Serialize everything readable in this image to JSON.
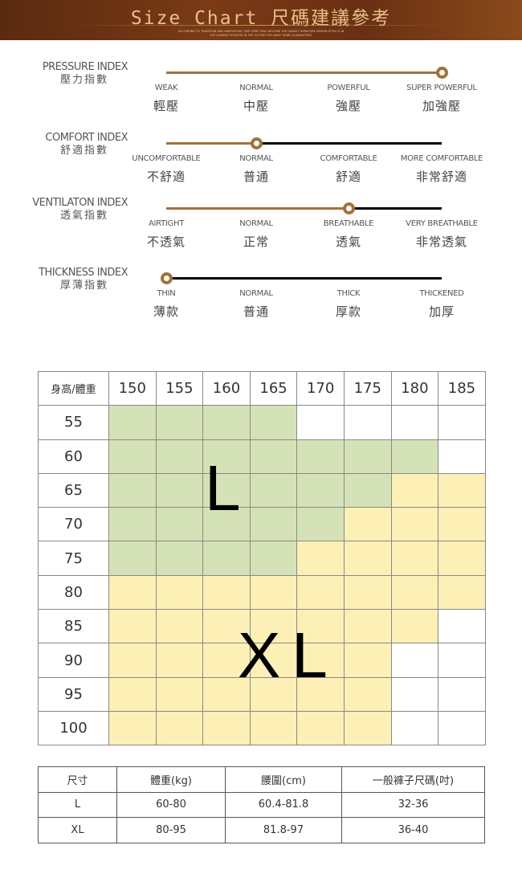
{
  "header": {
    "title": "Size Chart 尺碼建議參考",
    "subtitle_line1": "ACCORDING TO TRADITION AND INNOVATION, THIS SPIRIT WILL BECOME THE DANISH FURNITURE DESIGN STYLE IS IN",
    "subtitle_line2": "THE LEADING POSITION IN THE FUTURE FOR MANY YEARS GUARANTEED."
  },
  "indices": [
    {
      "name_en": "PRESSURE INDEX",
      "name_zh": "壓力指數",
      "level": 3,
      "levels": [
        {
          "en": "WEAK",
          "zh": "輕壓"
        },
        {
          "en": "NORMAL",
          "zh": "中壓"
        },
        {
          "en": "POWERFUL",
          "zh": "強壓"
        },
        {
          "en": "SUPER POWERFUL",
          "zh": "加強壓"
        }
      ]
    },
    {
      "name_en": "COMFORT INDEX",
      "name_zh": "舒適指數",
      "level": 1,
      "levels": [
        {
          "en": "UNCOMFORTABLE",
          "zh": "不舒適"
        },
        {
          "en": "NORMAL",
          "zh": "普通"
        },
        {
          "en": "COMFORTABLE",
          "zh": "舒適"
        },
        {
          "en": "MORE COMFORTABLE",
          "zh": "非常舒適"
        }
      ]
    },
    {
      "name_en": "VENTILATON INDEX",
      "name_zh": "透氣指數",
      "level": 2,
      "levels": [
        {
          "en": "AIRTIGHT",
          "zh": "不透氣"
        },
        {
          "en": "NORMAL",
          "zh": "正常"
        },
        {
          "en": "BREATHABLE",
          "zh": "透氣"
        },
        {
          "en": "VERY BREATHABLE",
          "zh": "非常透氣"
        }
      ]
    },
    {
      "name_en": "THICKNESS INDEX",
      "name_zh": "厚薄指數",
      "level": 0,
      "levels": [
        {
          "en": "THIN",
          "zh": "薄款"
        },
        {
          "en": "NORMAL",
          "zh": "普通"
        },
        {
          "en": "THICK",
          "zh": "厚款"
        },
        {
          "en": "THICKENED",
          "zh": "加厚"
        }
      ]
    }
  ],
  "colors": {
    "accent": "#a0723e",
    "L": "#d5e2b7",
    "XL": "#fdf0b6"
  },
  "size_grid": {
    "corner": "身高/體重",
    "heights": [
      "150",
      "155",
      "160",
      "165",
      "170",
      "175",
      "180",
      "185"
    ],
    "weights": [
      "55",
      "60",
      "65",
      "70",
      "75",
      "80",
      "85",
      "90",
      "95",
      "100"
    ],
    "cells": [
      "LLLL----",
      "LLLLLLL-",
      "LLLLLLXX",
      "LLLLLXXX",
      "LLLLXXXX",
      "XXXXXXXX",
      "XXXXXXX-",
      "XXXXXX--",
      "XXXXXX--",
      "XXXXXX--"
    ],
    "label_L": "L",
    "label_XL": "XL"
  },
  "size_table": {
    "headers": [
      "尺寸",
      "體重(kg)",
      "腰圍(cm)",
      "一般褲子尺碼(吋)"
    ],
    "rows": [
      [
        "L",
        "60-80",
        "60.4-81.8",
        "32-36"
      ],
      [
        "XL",
        "80-95",
        "81.8-97",
        "36-40"
      ]
    ]
  }
}
